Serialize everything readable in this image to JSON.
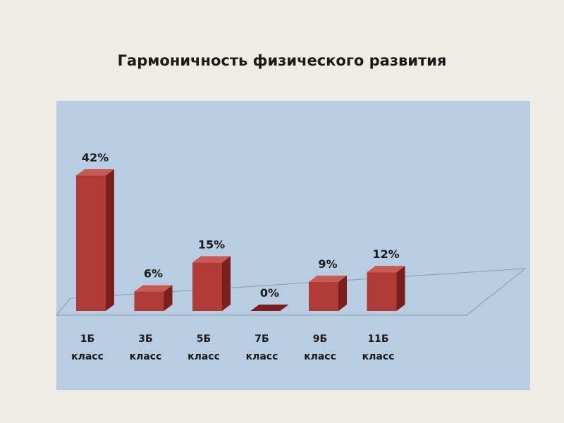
{
  "slide": {
    "title": "Гармоничность физического развития"
  },
  "colors": {
    "background": "#efece3",
    "plot_area": "#b9cde2",
    "bar_front": "#b03a35",
    "bar_side": "#7a1f1c",
    "bar_top": "#c65a54"
  },
  "chart_data": {
    "type": "bar",
    "title": "Гармоничность физического развития",
    "categories": [
      [
        "1Б",
        "класс"
      ],
      [
        "3Б",
        "класс"
      ],
      [
        "5Б",
        "класс"
      ],
      [
        "7Б",
        "класс"
      ],
      [
        "9Б",
        "класс"
      ],
      [
        "11Б",
        "класс"
      ]
    ],
    "values": [
      42,
      6,
      15,
      0,
      9,
      12
    ],
    "value_labels": [
      "42%",
      "6%",
      "15%",
      "0%",
      "9%",
      "12%"
    ],
    "ylim": [
      0,
      42
    ],
    "grid": false,
    "legend": "none",
    "style": "3d-columns"
  }
}
